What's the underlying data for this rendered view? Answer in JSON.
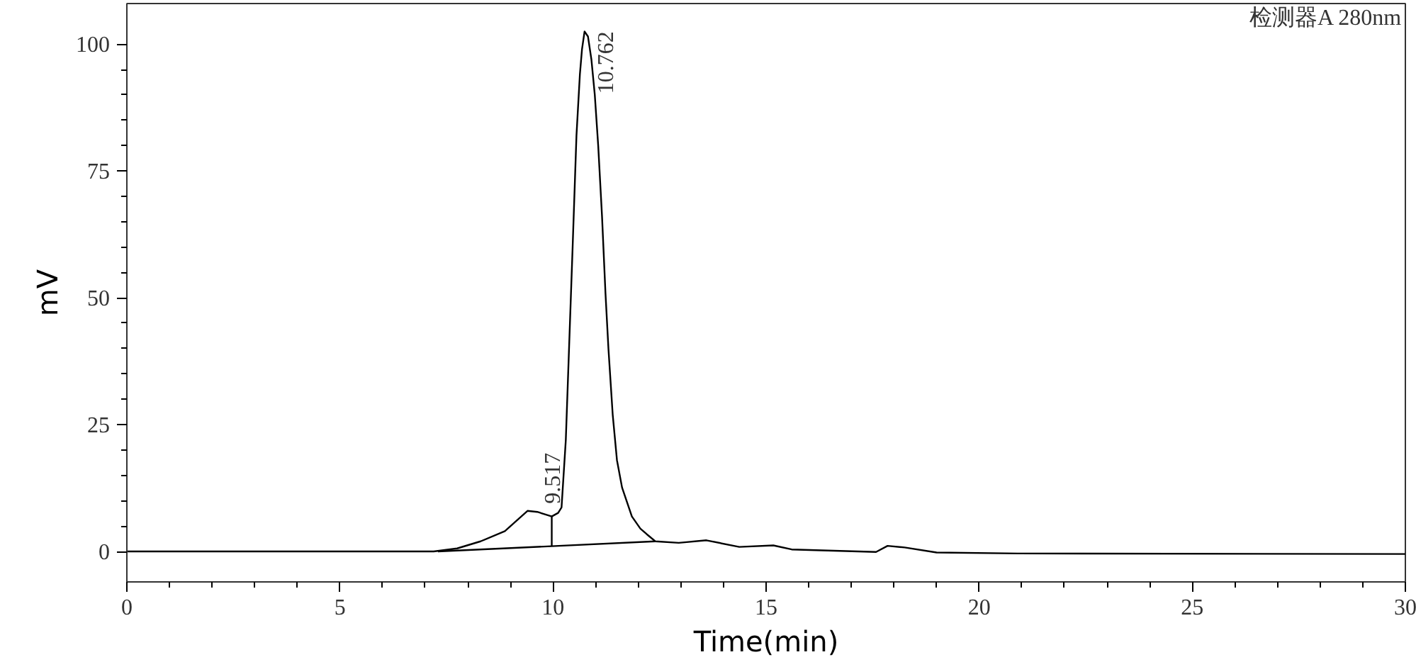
{
  "chart_data": {
    "type": "line",
    "xlabel": "Time(min)",
    "ylabel": "mV",
    "annotations": [
      {
        "text": "9.517",
        "x": 9.517,
        "y": 8.0
      },
      {
        "text": "10.762",
        "x": 10.762,
        "y": 102.5
      },
      "检测器A 280nm"
    ],
    "series": [
      {
        "color": "#000000",
        "x": [
          0,
          5,
          7.2,
          7.75,
          8.3,
          8.87,
          9.2,
          9.4,
          9.63,
          9.97,
          10.12,
          10.2,
          10.3,
          10.46,
          10.55,
          10.63,
          10.68,
          10.74,
          10.82,
          10.9,
          10.98,
          11.06,
          11.15,
          11.23,
          11.3,
          11.4,
          11.5,
          11.62,
          11.85,
          12.05,
          12.2,
          12.4,
          12.95,
          13.6,
          14.37,
          15.17,
          15.6,
          17.58,
          17.85,
          18.25,
          19.0,
          20.9,
          30
        ],
        "values": [
          0,
          0,
          0,
          0.6,
          2.0,
          4.0,
          6.5,
          8.0,
          7.8,
          6.9,
          7.6,
          8.7,
          22,
          60,
          82,
          94,
          99,
          102.5,
          101.5,
          97,
          90,
          80,
          66,
          51,
          40,
          27,
          18,
          12.6,
          6.9,
          4.5,
          3.4,
          2.0,
          1.7,
          2.2,
          0.9,
          1.2,
          0.4,
          -0.1,
          1.1,
          0.8,
          -0.2,
          -0.4,
          -0.5
        ]
      },
      {
        "type": "line",
        "color": "#000000",
        "x": [
          7.3,
          12.4
        ],
        "values": [
          0,
          2.0
        ]
      },
      {
        "type": "line",
        "color": "#000000",
        "x": [
          9.97,
          9.97
        ],
        "values": [
          1.0,
          6.9
        ]
      }
    ],
    "xlim": [
      0,
      30
    ],
    "xticks": [
      0,
      5,
      10,
      15,
      20,
      25,
      30
    ],
    "ylim": [
      -6,
      108
    ],
    "yticks": [
      0,
      25,
      50,
      75,
      100
    ],
    "grid": false,
    "marker": "none",
    "line_style": "solid"
  }
}
